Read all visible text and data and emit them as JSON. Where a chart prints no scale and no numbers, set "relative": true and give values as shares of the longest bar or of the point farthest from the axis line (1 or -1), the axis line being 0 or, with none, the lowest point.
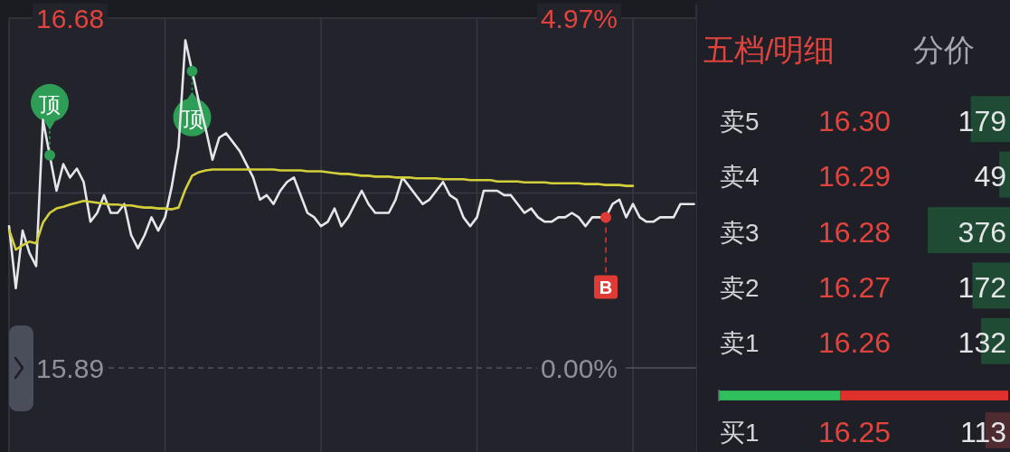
{
  "chart_data": [
    {
      "type": "line",
      "categories": [
        null,
        null,
        null,
        null,
        null,
        null,
        null,
        null,
        null,
        null,
        null,
        null,
        null,
        null,
        null,
        null,
        null,
        null,
        null,
        null,
        null,
        null,
        null,
        null,
        null,
        null,
        null,
        null,
        null,
        null,
        null,
        null,
        null,
        null,
        null,
        null,
        null,
        null,
        null,
        null,
        null,
        null,
        null,
        null,
        null,
        null,
        null,
        null,
        null,
        null,
        null,
        null,
        null,
        null,
        null,
        null,
        null,
        null,
        null,
        null,
        null,
        null,
        null,
        null,
        null,
        null,
        null,
        null,
        null,
        null,
        null,
        null,
        null,
        null,
        null,
        null,
        null,
        null,
        null,
        null,
        null,
        null,
        null,
        null,
        null,
        null,
        null,
        null,
        null,
        null,
        null,
        null,
        null,
        null,
        null,
        null,
        null,
        null,
        null,
        null,
        null,
        null
      ],
      "ylim": [
        15.7,
        16.68
      ],
      "yticks": [
        15.89,
        {
          "value": 16.285,
          "label": null
        },
        16.68
      ],
      "y2lim": [
        -1.2,
        4.97
      ],
      "y2ticks": [
        {
          "value": 0,
          "label": "0.00%"
        },
        {
          "value": 4.97,
          "label": "4.97%"
        }
      ],
      "grid": true,
      "tick_labels": "y",
      "ref_lines": [
        {
          "axis": "y",
          "value": 15.89,
          "line_style": "dashed",
          "color": "#50535e"
        }
      ],
      "series": [
        {
          "color": "#e6e6ea",
          "values": [
            16.21,
            16.07,
            16.2,
            16.15,
            16.12,
            16.45,
            16.37,
            16.29,
            16.35,
            16.32,
            16.34,
            16.31,
            16.22,
            16.24,
            16.28,
            16.24,
            16.24,
            16.26,
            16.19,
            16.16,
            16.19,
            16.23,
            16.2,
            16.23,
            16.3,
            16.39,
            16.63,
            16.56,
            16.49,
            16.43,
            16.36,
            16.41,
            16.42,
            16.4,
            16.38,
            16.35,
            16.32,
            16.27,
            16.28,
            16.26,
            16.29,
            16.31,
            16.32,
            16.28,
            16.24,
            16.23,
            16.21,
            16.22,
            16.25,
            16.21,
            16.23,
            16.26,
            16.29,
            16.26,
            16.24,
            16.24,
            16.24,
            16.27,
            16.32,
            16.3,
            16.28,
            16.26,
            16.27,
            16.29,
            16.31,
            16.28,
            16.27,
            16.23,
            16.21,
            16.23,
            16.29,
            16.29,
            16.29,
            16.28,
            16.28,
            16.26,
            16.24,
            16.25,
            16.23,
            16.22,
            16.22,
            16.23,
            16.23,
            16.24,
            16.23,
            16.21,
            16.23,
            16.23,
            16.23,
            16.26,
            16.27,
            16.23,
            16.26,
            16.23,
            16.22,
            16.22,
            16.23,
            16.23,
            16.23,
            16.26,
            16.26,
            16.26
          ]
        },
        {
          "color": "#d3cf3b",
          "values": [
            16.202,
            16.157,
            16.167,
            16.175,
            16.171,
            16.218,
            16.24,
            16.25,
            16.254,
            16.259,
            16.263,
            16.267,
            16.265,
            16.263,
            16.261,
            16.259,
            16.259,
            16.257,
            16.257,
            16.254,
            16.252,
            16.252,
            16.25,
            16.25,
            16.248,
            16.252,
            16.293,
            16.324,
            16.332,
            16.336,
            16.338,
            16.338,
            16.338,
            16.338,
            16.338,
            16.338,
            16.338,
            16.338,
            16.338,
            16.338,
            16.336,
            16.336,
            16.336,
            16.336,
            16.334,
            16.334,
            16.334,
            16.332,
            16.33,
            16.328,
            16.328,
            16.326,
            16.324,
            16.324,
            16.322,
            16.322,
            16.322,
            16.32,
            16.32,
            16.32,
            16.318,
            16.318,
            16.318,
            16.318,
            16.316,
            16.316,
            16.316,
            16.316,
            16.314,
            16.314,
            16.314,
            16.314,
            16.311,
            16.311,
            16.311,
            16.311,
            16.309,
            16.309,
            16.309,
            16.309,
            16.307,
            16.307,
            16.307,
            16.307,
            16.307,
            16.305,
            16.305,
            16.305,
            16.303,
            16.303,
            16.303,
            16.301,
            16.301,
            null,
            null,
            null,
            null,
            null,
            null,
            null,
            null,
            null
          ]
        },
        {
          "type": "scatter",
          "color": "#2e9d55",
          "marker": "circle",
          "values": [
            null,
            null,
            null,
            null,
            null,
            null,
            16.37,
            null,
            null,
            null,
            null,
            null,
            null,
            null,
            null,
            null,
            null,
            null,
            null,
            null,
            null,
            null,
            null,
            null,
            null,
            null,
            null,
            16.56,
            null,
            null,
            null,
            null,
            null,
            null,
            null,
            null,
            null,
            null,
            null,
            null,
            null,
            null,
            null,
            null,
            null,
            null,
            null,
            null,
            null,
            null,
            null,
            null,
            null,
            null,
            null,
            null,
            null,
            null,
            null,
            null,
            null,
            null,
            null,
            null,
            null,
            null,
            null,
            null,
            null,
            null,
            null,
            null,
            null,
            null,
            null,
            null,
            null,
            null,
            null,
            null,
            null,
            null,
            null,
            null,
            null,
            null,
            null,
            null,
            null,
            null,
            null,
            null,
            null,
            null,
            null,
            null,
            null,
            null,
            null,
            null,
            null,
            null
          ],
          "value_labels": [
            null,
            null,
            null,
            null,
            null,
            null,
            "顶",
            null,
            null,
            null,
            null,
            null,
            null,
            null,
            null,
            null,
            null,
            null,
            null,
            null,
            null,
            null,
            null,
            null,
            null,
            null,
            null,
            "顶",
            null,
            null,
            null,
            null,
            null,
            null,
            null,
            null,
            null,
            null,
            null,
            null,
            null,
            null,
            null,
            null,
            null,
            null,
            null,
            null,
            null,
            null,
            null,
            null,
            null,
            null,
            null,
            null,
            null,
            null,
            null,
            null,
            null,
            null,
            null,
            null,
            null,
            null,
            null,
            null,
            null,
            null,
            null,
            null,
            null,
            null,
            null,
            null,
            null,
            null,
            null,
            null,
            null,
            null,
            null,
            null,
            null,
            null,
            null,
            null,
            null,
            null,
            null,
            null,
            null,
            null,
            null,
            null,
            null,
            null,
            null,
            null,
            null,
            null
          ]
        },
        {
          "type": "scatter",
          "color": "#df3a33",
          "marker": "circle",
          "line_style": "dashed",
          "values": [
            null,
            null,
            null,
            null,
            null,
            null,
            null,
            null,
            null,
            null,
            null,
            null,
            null,
            null,
            null,
            null,
            null,
            null,
            null,
            null,
            null,
            null,
            null,
            null,
            null,
            null,
            null,
            null,
            null,
            null,
            null,
            null,
            null,
            null,
            null,
            null,
            null,
            null,
            null,
            null,
            null,
            null,
            null,
            null,
            null,
            null,
            null,
            null,
            null,
            null,
            null,
            null,
            null,
            null,
            null,
            null,
            null,
            null,
            null,
            null,
            null,
            null,
            null,
            null,
            null,
            null,
            null,
            null,
            null,
            null,
            null,
            null,
            null,
            null,
            null,
            null,
            null,
            null,
            null,
            null,
            null,
            null,
            null,
            null,
            null,
            null,
            null,
            null,
            16.23,
            null,
            null,
            null,
            null,
            null,
            null,
            null,
            null,
            null,
            null,
            null,
            null,
            null
          ],
          "value_labels": [
            null,
            null,
            null,
            null,
            null,
            null,
            null,
            null,
            null,
            null,
            null,
            null,
            null,
            null,
            null,
            null,
            null,
            null,
            null,
            null,
            null,
            null,
            null,
            null,
            null,
            null,
            null,
            null,
            null,
            null,
            null,
            null,
            null,
            null,
            null,
            null,
            null,
            null,
            null,
            null,
            null,
            null,
            null,
            null,
            null,
            null,
            null,
            null,
            null,
            null,
            null,
            null,
            null,
            null,
            null,
            null,
            null,
            null,
            null,
            null,
            null,
            null,
            null,
            null,
            null,
            null,
            null,
            null,
            null,
            null,
            null,
            null,
            null,
            null,
            null,
            null,
            null,
            null,
            null,
            null,
            null,
            null,
            null,
            null,
            null,
            null,
            null,
            null,
            "B",
            null,
            null,
            null,
            null,
            null,
            null,
            null,
            null,
            null,
            null,
            null,
            null,
            null
          ]
        }
      ]
    },
    {
      "type": "bar",
      "orientation": "horizontal",
      "title": "五档/明细",
      "subtitle": "分价",
      "categories": [
        "卖5",
        "卖4",
        "卖3",
        "卖2",
        "卖1"
      ],
      "values": [
        179,
        49,
        376,
        172,
        132
      ],
      "color": "#1f4a33",
      "data_labels": true,
      "annotations": [
        "16.30",
        "16.29",
        "16.28",
        "16.27",
        "16.26"
      ],
      "tick_labels": "y"
    },
    {
      "type": "bar",
      "orientation": "horizontal",
      "stacked": true,
      "relative": true,
      "categories": [
        null
      ],
      "series": [
        {
          "color": "#2fbf5c",
          "values": [
            0.42
          ]
        },
        {
          "color": "#e0302c",
          "values": [
            0.58
          ]
        }
      ],
      "tick_labels": false
    },
    {
      "type": "bar",
      "orientation": "horizontal",
      "categories": [
        "买1"
      ],
      "values": [
        113
      ],
      "color": "#4d2b30",
      "data_labels": true,
      "annotations": [
        "16.25"
      ],
      "tick_labels": "y"
    }
  ]
}
